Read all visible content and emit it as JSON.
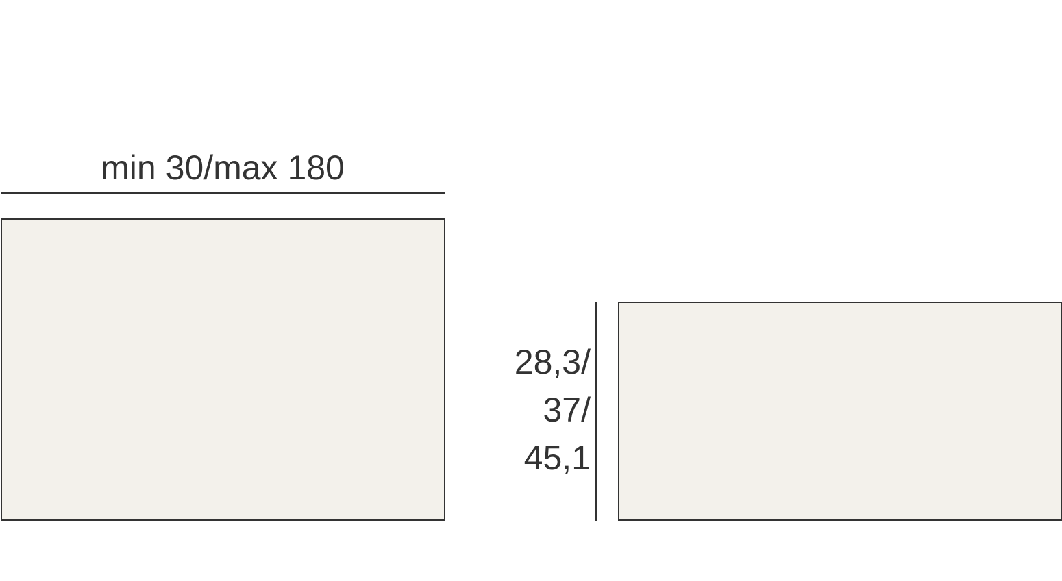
{
  "width_dimension": {
    "label": "min 30/max 180"
  },
  "height_dimension": {
    "lines": [
      "28,3/",
      "37/",
      "45,1"
    ]
  },
  "colors": {
    "fill": "#f3f1eb",
    "stroke": "#333333"
  }
}
